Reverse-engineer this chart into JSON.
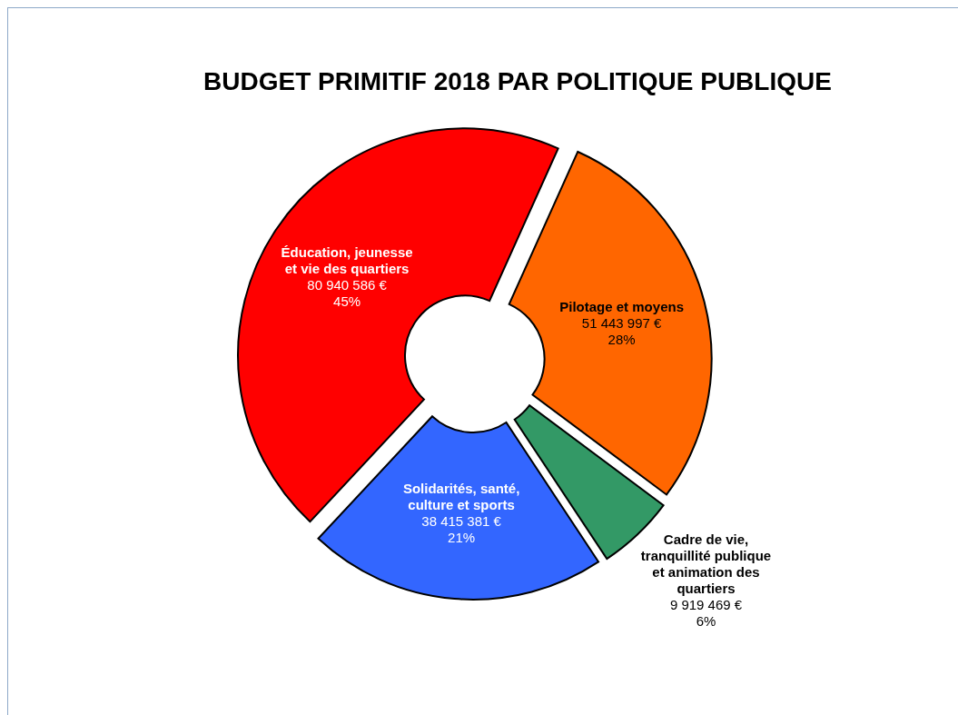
{
  "chart_data": {
    "type": "donut",
    "title": "BUDGET PRIMITIF 2018 PAR POLITIQUE PUBLIQUE",
    "categories": [
      "Éducation, jeunesse et vie des quartiers",
      "Pilotage et moyens",
      "Cadre de vie, tranquillité publique et animation des quartiers",
      "Solidarités, santé, culture et sports"
    ],
    "values": [
      80940586,
      51443997,
      9919469,
      38415381
    ],
    "colors": [
      "#ff0000",
      "#ff6600",
      "#339966",
      "#3366ff"
    ],
    "value_labels": [
      "80 940 586 €\n45%",
      "51 443 997 €\n28%",
      "9 919 469 €\n6%",
      "38 415 381 €\n21%"
    ],
    "legend": false
  }
}
